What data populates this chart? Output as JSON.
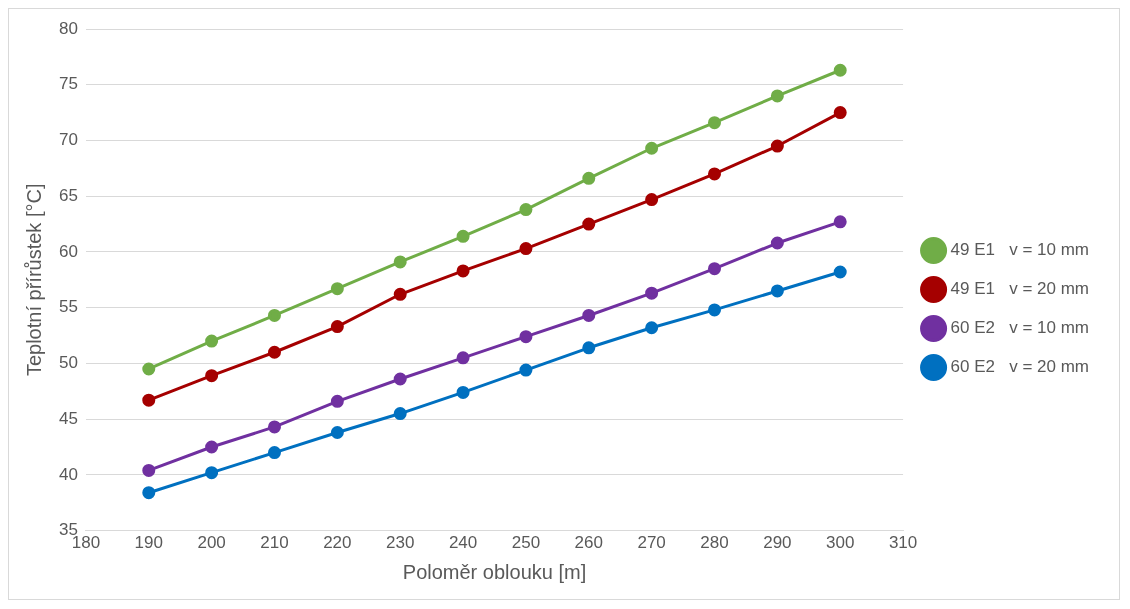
{
  "chart_data": {
    "type": "line",
    "xlabel": "Poloměr oblouku [m]",
    "ylabel": "Teplotní přírůstek [°C]",
    "x": [
      190,
      200,
      210,
      220,
      230,
      240,
      250,
      260,
      270,
      280,
      290,
      300
    ],
    "series": [
      {
        "name": "49 E1   v = 10 mm",
        "color": "#70ad47",
        "values": [
          49.5,
          52.0,
          54.3,
          56.7,
          59.1,
          61.4,
          63.8,
          66.6,
          69.3,
          71.6,
          74.0,
          76.3
        ]
      },
      {
        "name": "49 E1   v = 20 mm",
        "color": "#a50000",
        "values": [
          46.7,
          48.9,
          51.0,
          53.3,
          56.2,
          58.3,
          60.3,
          62.5,
          64.7,
          67.0,
          69.5,
          72.5
        ]
      },
      {
        "name": "60 E2   v = 10 mm",
        "color": "#7030a0",
        "values": [
          40.4,
          42.5,
          44.3,
          46.6,
          48.6,
          50.5,
          52.4,
          54.3,
          56.3,
          58.5,
          60.8,
          62.7
        ]
      },
      {
        "name": "60 E2   v = 20 mm",
        "color": "#0070c0",
        "values": [
          38.4,
          40.2,
          42.0,
          43.8,
          45.5,
          47.4,
          49.4,
          51.4,
          53.2,
          54.8,
          56.5,
          58.2
        ]
      }
    ],
    "xlim": [
      180,
      310
    ],
    "xticks": [
      180,
      190,
      200,
      210,
      220,
      230,
      240,
      250,
      260,
      270,
      280,
      290,
      300,
      310
    ],
    "ylim": [
      35,
      80
    ],
    "yticks": [
      35,
      40,
      45,
      50,
      55,
      60,
      65,
      70,
      75,
      80
    ],
    "grid": "y",
    "legend": "right",
    "marker": "circle",
    "line_style": "solid"
  }
}
